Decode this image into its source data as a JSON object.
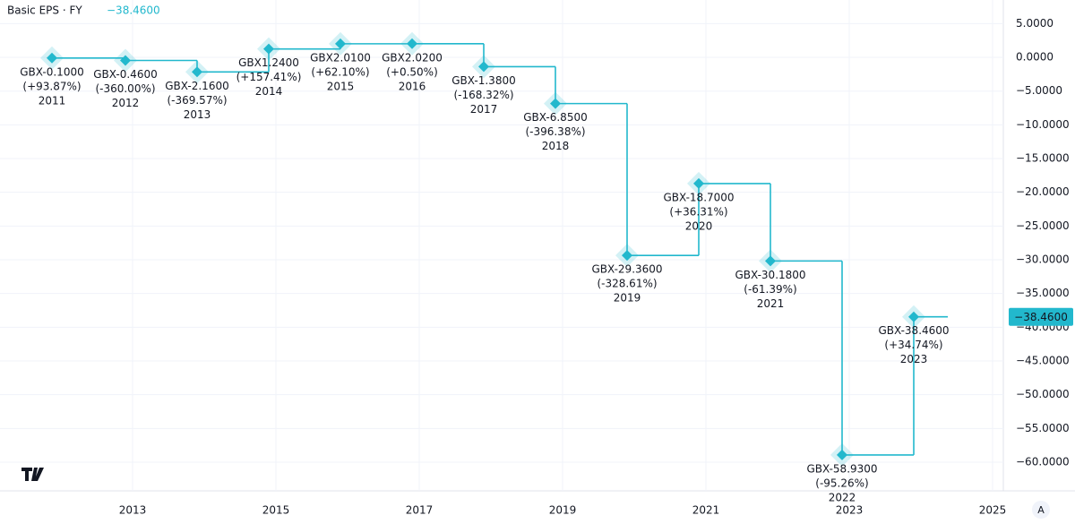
{
  "chart_data": {
    "type": "step-line",
    "title": "Basic EPS · FY",
    "last_value_label": "−38.4600",
    "color": "#22b8cd",
    "grid": true,
    "x": [
      2011.875,
      2012.9,
      2013.9,
      2014.9,
      2015.9,
      2016.9,
      2017.9,
      2018.9,
      2019.9,
      2020.9,
      2021.9,
      2022.9,
      2023.9
    ],
    "fiscal_years": [
      "2011",
      "2012",
      "2013",
      "2014",
      "2015",
      "2016",
      "2017",
      "2018",
      "2019",
      "2020",
      "2021",
      "2022",
      "2023"
    ],
    "values": [
      -0.1,
      -0.46,
      -2.16,
      1.24,
      2.01,
      2.02,
      -1.38,
      -6.85,
      -29.36,
      -18.7,
      -30.18,
      -58.93,
      -38.46
    ],
    "value_labels": [
      "GBX-0.1000",
      "GBX-0.4600",
      "GBX-2.1600",
      "GBX1.2400",
      "GBX2.0100",
      "GBX2.0200",
      "GBX-1.3800",
      "GBX-6.8500",
      "GBX-29.3600",
      "GBX-18.7000",
      "GBX-30.1800",
      "GBX-58.9300",
      "GBX-38.4600"
    ],
    "change_labels": [
      "(+93.87%)",
      "(-360.00%)",
      "(-369.57%)",
      "(+157.41%)",
      "(+62.10%)",
      "(+0.50%)",
      "(-168.32%)",
      "(-396.38%)",
      "(-328.61%)",
      "(+36.31%)",
      "(-61.39%)",
      "(-95.26%)",
      "(+34.74%)"
    ],
    "xlim": [
      2011.15,
      2025.15
    ],
    "xticks": [
      2013,
      2015,
      2017,
      2019,
      2021,
      2023,
      2025
    ],
    "ylim": [
      -64.25,
      8.5
    ],
    "yticks": [
      {
        "value": 5,
        "label": "5.0000"
      },
      {
        "value": 0,
        "label": "0.0000"
      },
      {
        "value": -5,
        "label": "−5.0000"
      },
      {
        "value": -10,
        "label": "−10.0000"
      },
      {
        "value": -15,
        "label": "−15.0000"
      },
      {
        "value": -20,
        "label": "−20.0000"
      },
      {
        "value": -25,
        "label": "−25.0000"
      },
      {
        "value": -30,
        "label": "−30.0000"
      },
      {
        "value": -35,
        "label": "−35.0000"
      },
      {
        "value": -40,
        "label": "−40.0000"
      },
      {
        "value": -45,
        "label": "−45.0000"
      },
      {
        "value": -50,
        "label": "−50.0000"
      },
      {
        "value": -55,
        "label": "−55.0000"
      },
      {
        "value": -60,
        "label": "−60.0000"
      }
    ]
  }
}
